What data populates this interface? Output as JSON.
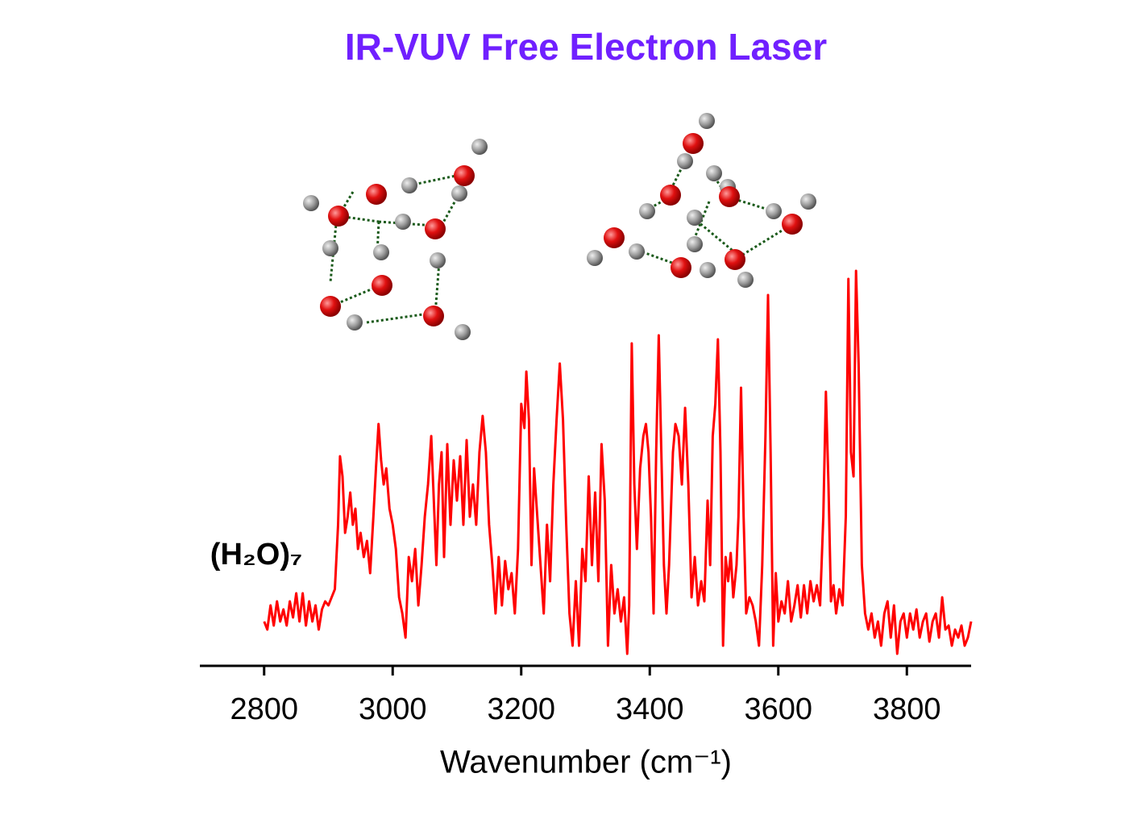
{
  "chart_data": {
    "type": "line",
    "title": "IR-VUV Free Electron Laser",
    "annotation": "(H₂O)₇",
    "x_label": "Wavenumber (cm⁻¹)",
    "color": "#ff0000",
    "xlim": [
      2700,
      3900
    ],
    "xticks": [
      2800,
      3000,
      3200,
      3400,
      3600,
      3800
    ],
    "ylim": [
      0,
      100
    ],
    "x": [
      2800,
      2805,
      2810,
      2815,
      2820,
      2825,
      2830,
      2835,
      2840,
      2845,
      2850,
      2855,
      2860,
      2865,
      2870,
      2875,
      2880,
      2885,
      2890,
      2895,
      2900,
      2905,
      2910,
      2915,
      2918,
      2922,
      2926,
      2930,
      2934,
      2938,
      2942,
      2946,
      2950,
      2955,
      2960,
      2965,
      2970,
      2974,
      2978,
      2982,
      2986,
      2990,
      2995,
      3000,
      3005,
      3010,
      3015,
      3020,
      3025,
      3030,
      3035,
      3040,
      3045,
      3050,
      3055,
      3060,
      3064,
      3068,
      3072,
      3076,
      3080,
      3085,
      3090,
      3095,
      3100,
      3105,
      3110,
      3115,
      3120,
      3125,
      3130,
      3135,
      3140,
      3145,
      3150,
      3155,
      3160,
      3165,
      3170,
      3175,
      3180,
      3185,
      3190,
      3195,
      3200,
      3205,
      3208,
      3212,
      3216,
      3220,
      3225,
      3230,
      3235,
      3240,
      3245,
      3250,
      3255,
      3260,
      3265,
      3270,
      3275,
      3280,
      3285,
      3290,
      3295,
      3300,
      3305,
      3310,
      3315,
      3320,
      3325,
      3330,
      3335,
      3340,
      3345,
      3350,
      3355,
      3360,
      3365,
      3368,
      3372,
      3376,
      3380,
      3385,
      3390,
      3394,
      3398,
      3402,
      3406,
      3410,
      3414,
      3418,
      3422,
      3426,
      3430,
      3436,
      3440,
      3445,
      3450,
      3455,
      3460,
      3465,
      3470,
      3475,
      3480,
      3485,
      3490,
      3494,
      3498,
      3502,
      3506,
      3510,
      3514,
      3518,
      3522,
      3526,
      3530,
      3535,
      3538,
      3542,
      3546,
      3550,
      3555,
      3560,
      3565,
      3570,
      3575,
      3580,
      3584,
      3588,
      3592,
      3596,
      3600,
      3605,
      3610,
      3615,
      3620,
      3625,
      3630,
      3635,
      3640,
      3645,
      3650,
      3655,
      3660,
      3665,
      3670,
      3674,
      3678,
      3682,
      3686,
      3690,
      3695,
      3700,
      3705,
      3709,
      3713,
      3717,
      3721,
      3725,
      3730,
      3735,
      3740,
      3745,
      3750,
      3755,
      3760,
      3765,
      3770,
      3775,
      3780,
      3785,
      3790,
      3795,
      3800,
      3805,
      3810,
      3815,
      3820,
      3825,
      3830,
      3835,
      3840,
      3845,
      3850,
      3855,
      3860,
      3865,
      3870,
      3875,
      3880,
      3885,
      3890,
      3895,
      3900
    ],
    "values": [
      11,
      9,
      15,
      10,
      16,
      11,
      14,
      10,
      16,
      12,
      18,
      11,
      18,
      10,
      16,
      11,
      15,
      9,
      14,
      16,
      15,
      17,
      19,
      35,
      52,
      47,
      33,
      37,
      43,
      35,
      39,
      29,
      33,
      27,
      31,
      23,
      37,
      49,
      60,
      51,
      45,
      49,
      39,
      35,
      29,
      17,
      13,
      7,
      27,
      21,
      29,
      15,
      25,
      37,
      45,
      57,
      41,
      25,
      45,
      53,
      27,
      55,
      35,
      51,
      41,
      52,
      35,
      56,
      37,
      45,
      35,
      53,
      62,
      53,
      35,
      25,
      13,
      27,
      15,
      26,
      19,
      23,
      13,
      29,
      65,
      59,
      73,
      61,
      25,
      49,
      37,
      25,
      13,
      35,
      21,
      45,
      61,
      75,
      61,
      35,
      13,
      5,
      21,
      5,
      29,
      21,
      47,
      25,
      43,
      21,
      55,
      41,
      5,
      25,
      13,
      19,
      11,
      17,
      3,
      15,
      80,
      45,
      29,
      49,
      57,
      60,
      53,
      37,
      13,
      53,
      82,
      53,
      25,
      13,
      25,
      53,
      60,
      57,
      45,
      64,
      45,
      17,
      27,
      15,
      21,
      16,
      41,
      25,
      57,
      65,
      81,
      53,
      5,
      27,
      21,
      28,
      17,
      25,
      37,
      69,
      37,
      13,
      17,
      15,
      11,
      5,
      25,
      57,
      92,
      53,
      5,
      23,
      11,
      16,
      13,
      21,
      11,
      15,
      20,
      12,
      20,
      13,
      21,
      16,
      20,
      15,
      37,
      68,
      45,
      16,
      20,
      13,
      19,
      15,
      37,
      96,
      53,
      47,
      98,
      75,
      25,
      13,
      9,
      13,
      7,
      11,
      5,
      13,
      16,
      7,
      15,
      3,
      11,
      13,
      7,
      13,
      9,
      14,
      7,
      11,
      13,
      6,
      11,
      13,
      7,
      17,
      9,
      10,
      5,
      9,
      7,
      10,
      5,
      7,
      11
    ]
  }
}
